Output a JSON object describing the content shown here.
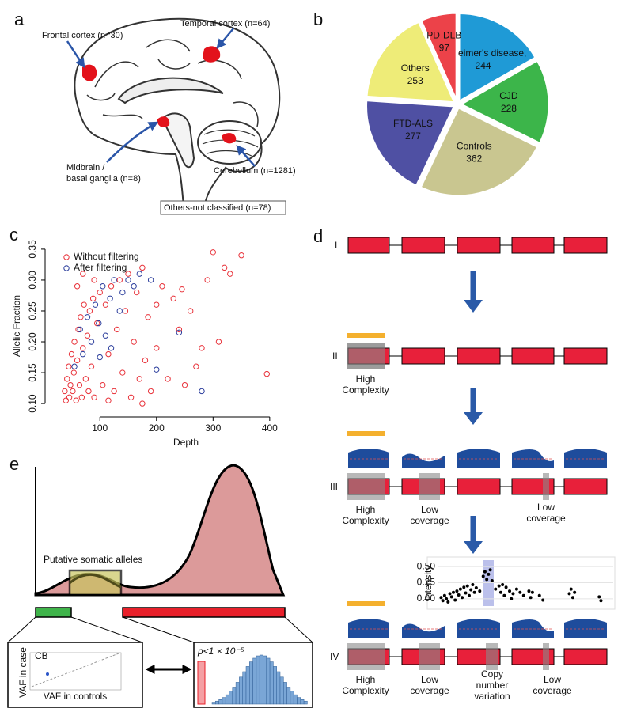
{
  "panels": [
    "a",
    "b",
    "c",
    "d",
    "e"
  ],
  "brain": {
    "frontal": "Frontal cortex (n=30)",
    "temporal": "Temporal cortex (n=64)",
    "midbrain": [
      "Midbrain /",
      "basal ganglia (n=8)"
    ],
    "cerebellum": "Cerebellum (n=1281)",
    "others": "Others-not classified (n=78)"
  },
  "chart_data": [
    {
      "type": "pie",
      "categories": [
        "Alzheimer's disease,",
        "CJD",
        "Controls",
        "FTD-ALS",
        "Others",
        "PD-DLB"
      ],
      "values": [
        244,
        228,
        362,
        277,
        253,
        97
      ],
      "colors": [
        "#1f9ad6",
        "#3cb54a",
        "#c9c690",
        "#4f50a3",
        "#eeec78",
        "#ec4249"
      ]
    },
    {
      "type": "scatter",
      "x_label": "Depth",
      "y_label": "Allelic Fraction",
      "legend": "top-left",
      "xlim": [
        20,
        410
      ],
      "ylim": [
        0.095,
        0.355
      ],
      "xticks": [
        100,
        200,
        300,
        400
      ],
      "yticks": [
        {
          "value": 0.1,
          "label": "0.10"
        },
        0.15,
        {
          "value": 0.2,
          "label": "0.20"
        },
        0.25,
        {
          "value": 0.3,
          "label": "0.30"
        },
        0.35
      ],
      "series": [
        {
          "name": "Without filtering",
          "color": "#e8323a",
          "x": [
            38,
            40,
            42,
            45,
            46,
            48,
            50,
            52,
            54,
            55,
            58,
            60,
            62,
            64,
            66,
            68,
            70,
            72,
            75,
            78,
            80,
            82,
            85,
            88,
            90,
            95,
            100,
            105,
            110,
            115,
            120,
            125,
            130,
            135,
            140,
            145,
            150,
            155,
            160,
            165,
            170,
            175,
            180,
            185,
            190,
            200,
            210,
            220,
            230,
            240,
            250,
            260,
            270,
            280,
            290,
            300,
            310,
            320,
            330,
            350,
            395,
            245,
            200,
            175,
            115,
            60,
            70,
            90
          ],
          "values": [
            0.12,
            0.105,
            0.14,
            0.16,
            0.11,
            0.13,
            0.18,
            0.12,
            0.15,
            0.2,
            0.105,
            0.17,
            0.22,
            0.13,
            0.24,
            0.11,
            0.19,
            0.26,
            0.14,
            0.21,
            0.12,
            0.25,
            0.16,
            0.27,
            0.11,
            0.23,
            0.28,
            0.13,
            0.26,
            0.18,
            0.29,
            0.12,
            0.22,
            0.3,
            0.15,
            0.25,
            0.31,
            0.11,
            0.2,
            0.28,
            0.14,
            0.32,
            0.17,
            0.24,
            0.12,
            0.19,
            0.29,
            0.14,
            0.27,
            0.22,
            0.13,
            0.25,
            0.16,
            0.19,
            0.3,
            0.345,
            0.2,
            0.32,
            0.31,
            0.34,
            0.148,
            0.285,
            0.26,
            0.1,
            0.105,
            0.29,
            0.31,
            0.3
          ]
        },
        {
          "name": "After filtering",
          "color": "#2b3d9c",
          "x": [
            55,
            65,
            70,
            78,
            85,
            92,
            98,
            105,
            110,
            118,
            125,
            135,
            140,
            150,
            160,
            170,
            190,
            120,
            200,
            240,
            280,
            100
          ],
          "values": [
            0.16,
            0.22,
            0.18,
            0.24,
            0.2,
            0.26,
            0.23,
            0.29,
            0.21,
            0.27,
            0.3,
            0.25,
            0.28,
            0.3,
            0.29,
            0.31,
            0.3,
            0.19,
            0.155,
            0.215,
            0.12,
            0.175
          ]
        }
      ]
    },
    {
      "type": "scatter",
      "y_label": "Intensity",
      "color": "#000000",
      "grid": true,
      "xlim": [
        0,
        100
      ],
      "ylim": [
        -0.1,
        0.6
      ],
      "yticks": [
        {
          "value": 0,
          "label": "0.00"
        },
        0.25,
        {
          "value": 0.5,
          "label": "0.50"
        }
      ],
      "x": [
        2,
        3,
        4,
        5,
        6,
        7,
        8,
        9,
        10,
        11,
        12,
        13,
        14,
        15,
        16,
        17,
        18,
        19,
        20,
        21,
        22,
        24,
        26,
        27,
        28,
        29,
        30,
        31,
        33,
        35,
        36,
        37,
        38,
        39,
        41,
        42,
        43,
        45,
        47,
        49,
        52,
        53,
        54,
        58,
        60,
        75,
        76,
        77,
        78,
        92,
        93
      ],
      "values": [
        0.02,
        -0.03,
        0.05,
        0,
        -0.05,
        0.08,
        0.03,
        0.1,
        -0.02,
        0.12,
        0.06,
        0.15,
        0.02,
        0.18,
        0.09,
        0.2,
        0.05,
        0.14,
        0.22,
        0.1,
        0.17,
        0.12,
        0.35,
        0.42,
        0.3,
        0.38,
        0.45,
        0.28,
        0.15,
        0.2,
        0.1,
        0.22,
        0.05,
        0.18,
        0.12,
        0,
        0.08,
        0.15,
        0.1,
        0.05,
        0.12,
        0.02,
        0.1,
        0.05,
        -0.02,
        0.08,
        0.15,
        0.02,
        0.1,
        0.03,
        -0.03
      ]
    }
  ],
  "pipeline": {
    "stages": [
      "I",
      "II",
      "III",
      "IV"
    ],
    "high_complexity": [
      "High",
      "Complexity"
    ],
    "low_coverage": [
      "Low",
      "coverage"
    ],
    "cnv": [
      "Copy",
      "number",
      "variation"
    ]
  },
  "density": {
    "annotation": "Putative somatic alleles",
    "inset_left": {
      "y_label": "VAF in case",
      "x_label": "VAF in controls",
      "point_label": "CB"
    },
    "inset_right": {
      "p_label": "p<1 × 10⁻⁵"
    }
  }
}
